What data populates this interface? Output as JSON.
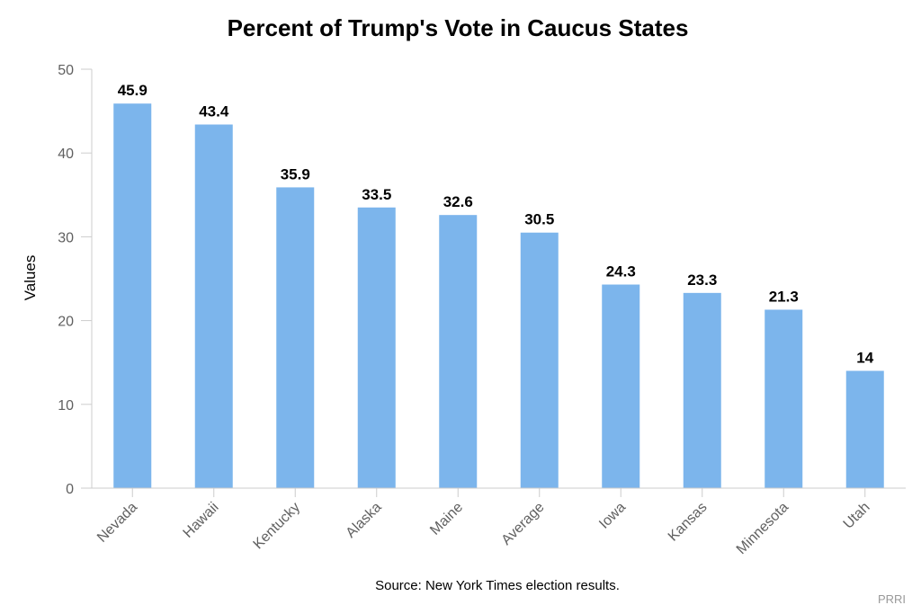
{
  "chart_data": {
    "type": "bar",
    "title": "Percent of Trump's Vote in Caucus States",
    "xlabel": "",
    "ylabel": "Values",
    "ylim": [
      0,
      50
    ],
    "yticks": [
      0,
      10,
      20,
      30,
      40,
      50
    ],
    "grid": false,
    "categories": [
      "Nevada",
      "Hawaii",
      "Kentucky",
      "Alaska",
      "Maine",
      "Average",
      "Iowa",
      "Kansas",
      "Minnesota",
      "Utah"
    ],
    "values": [
      45.9,
      43.4,
      35.9,
      33.5,
      32.6,
      30.5,
      24.3,
      23.3,
      21.3,
      14
    ],
    "value_labels": [
      "45.9",
      "43.4",
      "35.9",
      "33.5",
      "32.6",
      "30.5",
      "24.3",
      "23.3",
      "21.3",
      "14"
    ],
    "bar_color": "#7cb5ec",
    "source": "Source: New York Times election results.",
    "credit": "PRRI"
  }
}
